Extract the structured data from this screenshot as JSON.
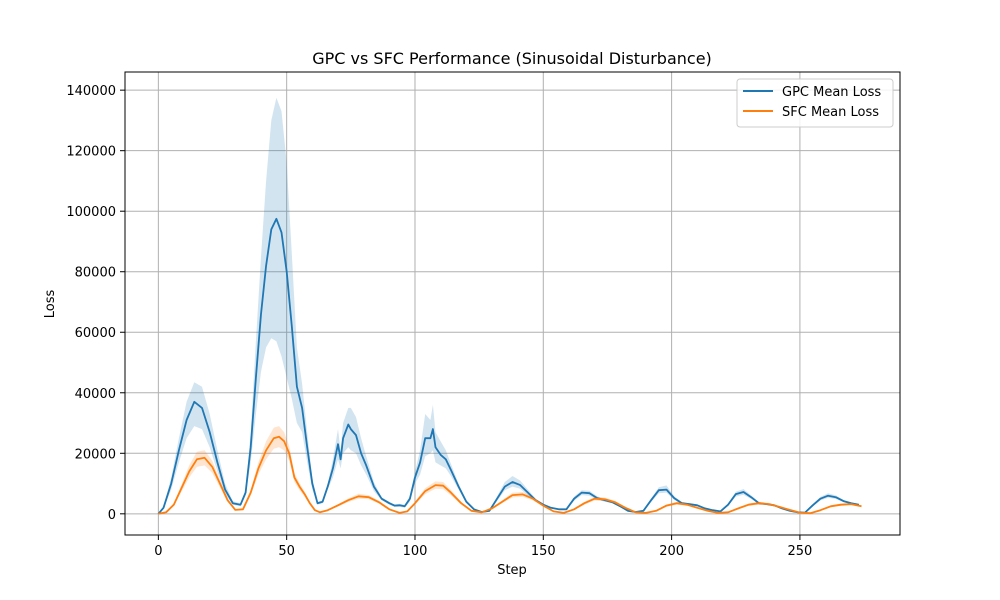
{
  "chart_data": {
    "type": "line",
    "title": "GPC vs SFC Performance (Sinusoidal Disturbance)",
    "xlabel": "Step",
    "ylabel": "Loss",
    "xlim": [
      -13,
      289
    ],
    "ylim": [
      -7000,
      146000
    ],
    "xticks": [
      0,
      50,
      100,
      150,
      200,
      250
    ],
    "yticks": [
      0,
      20000,
      40000,
      60000,
      80000,
      100000,
      120000,
      140000
    ],
    "grid": true,
    "legend_position": "top-right",
    "series": [
      {
        "name": "GPC Mean Loss",
        "color": "#1f77b4",
        "band_opacity": 0.2,
        "x": [
          0,
          2,
          5,
          8,
          11,
          14,
          17,
          20,
          23,
          26,
          29,
          32,
          34,
          36,
          38,
          40,
          42,
          44,
          46,
          48,
          50,
          52,
          54,
          56,
          58,
          60,
          62,
          64,
          66,
          68,
          70,
          71,
          72,
          74,
          75,
          77,
          79,
          81,
          84,
          87,
          90,
          92,
          94,
          96,
          98,
          100,
          102,
          104,
          106,
          107,
          108,
          110,
          112,
          114,
          117,
          120,
          123,
          126,
          129,
          132,
          135,
          138,
          141,
          144,
          147,
          150,
          153,
          156,
          159,
          162,
          165,
          168,
          171,
          174,
          177,
          180,
          183,
          186,
          189,
          192,
          195,
          198,
          201,
          204,
          207,
          210,
          213,
          216,
          219,
          222,
          225,
          228,
          231,
          234,
          237,
          240,
          243,
          246,
          249,
          252,
          255,
          258,
          261,
          264,
          267,
          270,
          273
        ],
        "y": [
          0,
          2000,
          10000,
          21000,
          31000,
          37000,
          35000,
          27000,
          17000,
          8000,
          3500,
          3000,
          7000,
          22000,
          45000,
          66000,
          82000,
          94000,
          97500,
          93000,
          80000,
          62000,
          42000,
          35000,
          22000,
          10000,
          3500,
          4000,
          9000,
          15000,
          23000,
          18000,
          25000,
          29500,
          28000,
          26000,
          20000,
          16000,
          9000,
          5000,
          3500,
          2700,
          2800,
          2500,
          5000,
          12000,
          17000,
          25000,
          25000,
          28000,
          22000,
          19500,
          18000,
          14500,
          9000,
          4000,
          1500,
          600,
          1000,
          5000,
          9000,
          10500,
          9500,
          7000,
          4500,
          3000,
          2000,
          1500,
          1500,
          5000,
          7000,
          6800,
          5200,
          4500,
          3800,
          2500,
          1000,
          600,
          1000,
          4500,
          7800,
          8000,
          5200,
          3500,
          3200,
          2800,
          1800,
          1200,
          800,
          3000,
          6500,
          7200,
          5500,
          3500,
          3200,
          2800,
          1800,
          1000,
          500,
          400,
          2800,
          5000,
          6000,
          5500,
          4200,
          3500,
          3000
        ],
        "lower": [
          0,
          1500,
          8000,
          17000,
          25000,
          29000,
          28000,
          22000,
          14000,
          6500,
          3000,
          2500,
          6000,
          17000,
          33000,
          47000,
          55000,
          58000,
          57000,
          52000,
          45000,
          38000,
          30000,
          27000,
          17000,
          8000,
          3000,
          3500,
          8000,
          12000,
          18000,
          15000,
          20000,
          22000,
          21000,
          20000,
          16000,
          13000,
          7500,
          4500,
          3000,
          2300,
          2300,
          2000,
          4000,
          10000,
          13000,
          19000,
          20000,
          21000,
          17000,
          16000,
          15000,
          12500,
          8000,
          3500,
          1300,
          500,
          800,
          4200,
          7800,
          9000,
          8300,
          6000,
          4000,
          2700,
          1800,
          1300,
          1300,
          4300,
          6200,
          6000,
          4600,
          4000,
          3400,
          2200,
          900,
          500,
          900,
          3900,
          6800,
          7000,
          4600,
          3100,
          2900,
          2500,
          1600,
          1000,
          700,
          2600,
          5700,
          6300,
          4900,
          3100,
          2900,
          2500,
          1600,
          900,
          400,
          300,
          2400,
          4400,
          5300,
          4900,
          3800,
          3200,
          2700
        ],
        "upper": [
          0,
          2500,
          12000,
          25000,
          37000,
          43500,
          42000,
          33000,
          21000,
          10000,
          4200,
          3500,
          8000,
          27000,
          57000,
          85000,
          110000,
          130000,
          137500,
          133000,
          116000,
          86000,
          55000,
          43000,
          27000,
          12000,
          4000,
          4500,
          10000,
          18000,
          28000,
          21000,
          30000,
          35000,
          35000,
          32000,
          25000,
          19000,
          10500,
          5500,
          4000,
          3100,
          3300,
          3000,
          6000,
          14000,
          21000,
          33000,
          31000,
          36000,
          27000,
          24000,
          21000,
          16500,
          10000,
          4500,
          1700,
          700,
          1200,
          5800,
          10500,
          12500,
          11000,
          8000,
          5000,
          3300,
          2200,
          1700,
          1700,
          5700,
          7800,
          7600,
          5800,
          5000,
          4200,
          2800,
          1100,
          700,
          1100,
          5100,
          8800,
          9400,
          5800,
          3900,
          3500,
          3100,
          2000,
          1400,
          900,
          3400,
          7300,
          8200,
          6100,
          3900,
          3500,
          3100,
          2000,
          1100,
          600,
          500,
          3200,
          5600,
          6800,
          6100,
          4600,
          3800,
          3300
        ]
      },
      {
        "name": "SFC Mean Loss",
        "color": "#ff7f0e",
        "band_opacity": 0.2,
        "x": [
          0,
          3,
          6,
          9,
          12,
          15,
          18,
          21,
          24,
          27,
          30,
          33,
          36,
          39,
          42,
          45,
          47,
          49,
          51,
          53,
          55,
          57,
          59,
          61,
          63,
          66,
          70,
          74,
          78,
          82,
          86,
          90,
          94,
          97,
          100,
          104,
          108,
          111,
          114,
          118,
          122,
          126,
          130,
          134,
          138,
          142,
          146,
          150,
          154,
          158,
          162,
          166,
          170,
          174,
          178,
          182,
          186,
          190,
          194,
          198,
          202,
          206,
          210,
          214,
          218,
          222,
          226,
          230,
          234,
          238,
          242,
          246,
          250,
          254,
          258,
          262,
          266,
          270,
          274
        ],
        "y": [
          0,
          500,
          3000,
          8500,
          14000,
          18000,
          18500,
          15500,
          10000,
          4500,
          1300,
          1500,
          7000,
          15000,
          21000,
          25000,
          25500,
          24000,
          20000,
          12000,
          9000,
          6500,
          3500,
          1200,
          500,
          1200,
          2800,
          4500,
          5800,
          5500,
          3800,
          1500,
          300,
          800,
          3500,
          7500,
          9500,
          9300,
          7000,
          3500,
          1000,
          500,
          1800,
          4000,
          6200,
          6400,
          5000,
          2700,
          800,
          300,
          1500,
          3500,
          5000,
          4800,
          3800,
          2000,
          500,
          300,
          1000,
          2700,
          3500,
          3000,
          2000,
          1000,
          300,
          500,
          1800,
          3000,
          3500,
          3200,
          2300,
          1300,
          400,
          200,
          1200,
          2500,
          3000,
          3200,
          2500
        ],
        "lower": [
          0,
          400,
          2600,
          7300,
          12000,
          15500,
          16000,
          13500,
          8700,
          3900,
          1100,
          1300,
          6000,
          13000,
          18000,
          21500,
          22000,
          21000,
          17500,
          10500,
          7800,
          5600,
          3000,
          1000,
          400,
          1000,
          2400,
          3900,
          5000,
          4800,
          3300,
          1300,
          200,
          700,
          3000,
          6500,
          8300,
          8100,
          6100,
          3000,
          900,
          400,
          1500,
          3500,
          5400,
          5600,
          4400,
          2300,
          700,
          200,
          1300,
          3000,
          4400,
          4200,
          3300,
          1700,
          400,
          200,
          900,
          2300,
          3000,
          2600,
          1700,
          900,
          200,
          400,
          1500,
          2600,
          3000,
          2800,
          2000,
          1100,
          300,
          150,
          1000,
          2200,
          2600,
          2800,
          2200
        ],
        "upper": [
          0,
          600,
          3400,
          9700,
          16000,
          20500,
          21000,
          17500,
          11300,
          5100,
          1500,
          1700,
          8000,
          17000,
          24000,
          28500,
          29000,
          27000,
          22500,
          13500,
          10200,
          7400,
          4000,
          1400,
          600,
          1400,
          3200,
          5100,
          6600,
          6200,
          4300,
          1700,
          400,
          900,
          4000,
          8500,
          10700,
          10500,
          7900,
          4000,
          1100,
          600,
          2100,
          4500,
          7000,
          7200,
          5600,
          3100,
          900,
          400,
          1700,
          4000,
          5600,
          5400,
          4300,
          2300,
          600,
          400,
          1100,
          3100,
          4000,
          3400,
          2300,
          1100,
          400,
          600,
          2100,
          3400,
          4000,
          3600,
          2600,
          1500,
          500,
          250,
          1400,
          2800,
          3400,
          3600,
          2800
        ]
      }
    ]
  }
}
